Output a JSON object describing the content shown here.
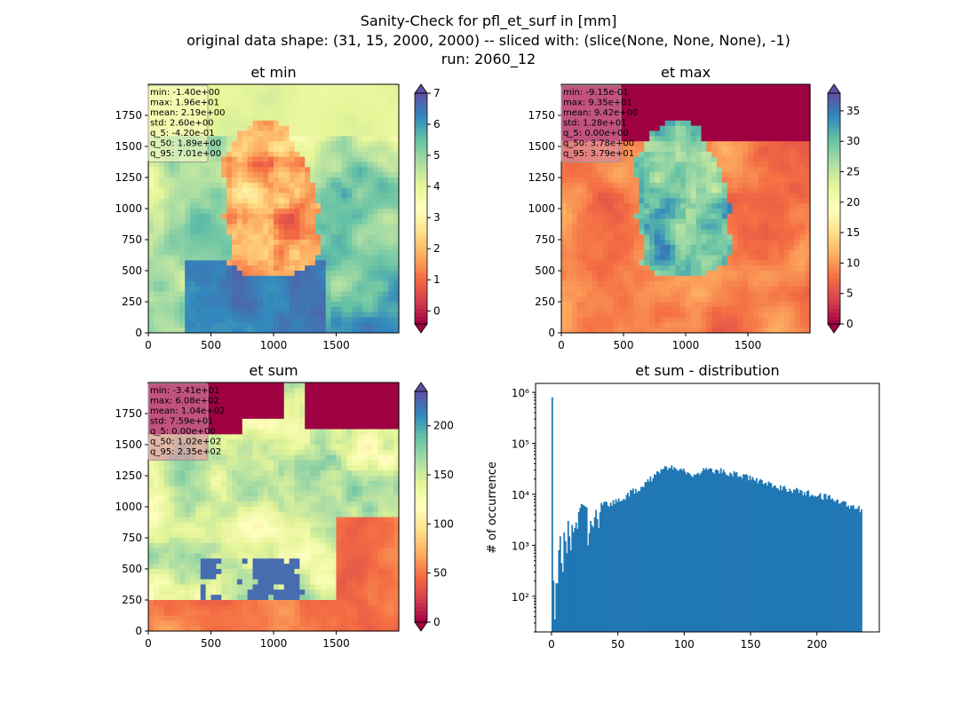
{
  "figure": {
    "title_lines": [
      "Sanity-Check for pfl_et_surf in [mm]",
      "original data shape: (31, 15, 2000, 2000) -- sliced with: (slice(None, None, None), -1)",
      "run: 2060_12"
    ]
  },
  "chart_data": [
    {
      "type": "heatmap",
      "title": "et min",
      "colormap": "Spectral",
      "x_ticks": [
        "0",
        "500",
        "1000",
        "1500"
      ],
      "y_ticks": [
        "0",
        "250",
        "500",
        "750",
        "1000",
        "1250",
        "1500",
        "1750"
      ],
      "xlim": [
        0,
        2000
      ],
      "ylim": [
        0,
        2000
      ],
      "colorbar": {
        "range": [
          -0.42,
          7.0
        ],
        "ticks": [
          "0",
          "1",
          "2",
          "3",
          "4",
          "5",
          "6",
          "7"
        ],
        "extend": "both"
      },
      "stats": [
        "min: -1.40e+00",
        "max: 1.96e+01",
        "mean: 2.19e+00",
        "std: 2.60e+00",
        "q_5: -4.20e-01",
        "q_50: 1.89e+00",
        "q_95: 7.01e+00"
      ],
      "stats_box_color": "#fdfdbf"
    },
    {
      "type": "heatmap",
      "title": "et max",
      "colormap": "Spectral",
      "x_ticks": [
        "0",
        "500",
        "1000",
        "1500"
      ],
      "y_ticks": [
        "0",
        "250",
        "500",
        "750",
        "1000",
        "1250",
        "1500",
        "1750"
      ],
      "xlim": [
        0,
        2000
      ],
      "ylim": [
        0,
        2000
      ],
      "colorbar": {
        "range": [
          0,
          37.9
        ],
        "ticks": [
          "0",
          "5",
          "10",
          "15",
          "20",
          "25",
          "30",
          "35"
        ],
        "extend": "both"
      },
      "stats": [
        "min: -9.15e-01",
        "max: 9.35e+01",
        "mean: 9.42e+00",
        "std: 1.28e+01",
        "q_5: 0.00e+00",
        "q_50: 3.78e+00",
        "q_95: 3.79e+01"
      ],
      "stats_box_color": "#d88aa6"
    },
    {
      "type": "heatmap",
      "title": "et sum",
      "colormap": "Spectral",
      "x_ticks": [
        "0",
        "500",
        "1000",
        "1500"
      ],
      "y_ticks": [
        "0",
        "250",
        "500",
        "750",
        "1000",
        "1250",
        "1500",
        "1750"
      ],
      "xlim": [
        0,
        2000
      ],
      "ylim": [
        0,
        2000
      ],
      "colorbar": {
        "range": [
          0,
          235
        ],
        "ticks": [
          "0",
          "50",
          "100",
          "150",
          "200"
        ],
        "extend": "both"
      },
      "stats": [
        "min: -3.41e+01",
        "max: 6.08e+02",
        "mean: 1.04e+02",
        "std: 7.59e+01",
        "q_5: 0.00e+00",
        "q_50: 1.02e+02",
        "q_95: 2.35e+02"
      ],
      "stats_box_color": "#d88aa6"
    },
    {
      "type": "bar",
      "title": "et sum - distribution",
      "ylabel": "# of occurrence",
      "xlabel": "",
      "y_scale": "log",
      "xlim": [
        -12,
        247
      ],
      "ylim": [
        20,
        1500000
      ],
      "x_ticks": [
        0,
        50,
        100,
        150,
        200
      ],
      "y_ticks": [
        {
          "value": 100,
          "label": "10²"
        },
        {
          "value": 1000,
          "label": "10³"
        },
        {
          "value": 10000,
          "label": "10⁴"
        },
        {
          "value": 100000,
          "label": "10⁵"
        },
        {
          "value": 1000000,
          "label": "10⁶"
        }
      ],
      "bar_color": "#1f77b4",
      "bins": {
        "start": 0,
        "width": 1.0,
        "counts_description_points": [
          [
            0,
            800000
          ],
          [
            1,
            200
          ],
          [
            2,
            35
          ],
          [
            3,
            180
          ],
          [
            4,
            180
          ],
          [
            5,
            800
          ],
          [
            6,
            1500
          ],
          [
            7,
            450
          ],
          [
            8,
            300
          ],
          [
            9,
            1800
          ],
          [
            10,
            1200
          ],
          [
            11,
            700
          ],
          [
            12,
            3000
          ],
          [
            13,
            1500
          ],
          [
            14,
            800
          ],
          [
            15,
            2500
          ],
          [
            16,
            1800
          ],
          [
            17,
            2200
          ],
          [
            18,
            2800
          ],
          [
            19,
            2100
          ],
          [
            20,
            4500
          ],
          [
            22,
            6500
          ],
          [
            24,
            6000
          ],
          [
            26,
            5500
          ],
          [
            27,
            1000
          ],
          [
            29,
            3000
          ],
          [
            31,
            2000
          ],
          [
            33,
            5000
          ],
          [
            35,
            2500
          ],
          [
            37,
            6000
          ],
          [
            40,
            7000
          ],
          [
            43,
            6500
          ],
          [
            46,
            7000
          ],
          [
            50,
            7500
          ],
          [
            55,
            9000
          ],
          [
            60,
            11000
          ],
          [
            65,
            13000
          ],
          [
            70,
            16000
          ],
          [
            75,
            21000
          ],
          [
            80,
            27000
          ],
          [
            85,
            32000
          ],
          [
            90,
            35000
          ],
          [
            95,
            33000
          ],
          [
            100,
            29000
          ],
          [
            105,
            25000
          ],
          [
            110,
            27000
          ],
          [
            115,
            29000
          ],
          [
            120,
            30000
          ],
          [
            125,
            29000
          ],
          [
            130,
            28000
          ],
          [
            135,
            26000
          ],
          [
            140,
            24000
          ],
          [
            145,
            22000
          ],
          [
            150,
            20000
          ],
          [
            155,
            18000
          ],
          [
            160,
            17000
          ],
          [
            165,
            15000
          ],
          [
            170,
            14000
          ],
          [
            175,
            13000
          ],
          [
            180,
            12500
          ],
          [
            185,
            12000
          ],
          [
            190,
            11000
          ],
          [
            195,
            10000
          ],
          [
            200,
            9500
          ],
          [
            205,
            9000
          ],
          [
            210,
            8500
          ],
          [
            215,
            7500
          ],
          [
            220,
            7000
          ],
          [
            225,
            6000
          ],
          [
            230,
            5500
          ],
          [
            233,
            5000
          ]
        ]
      }
    }
  ]
}
